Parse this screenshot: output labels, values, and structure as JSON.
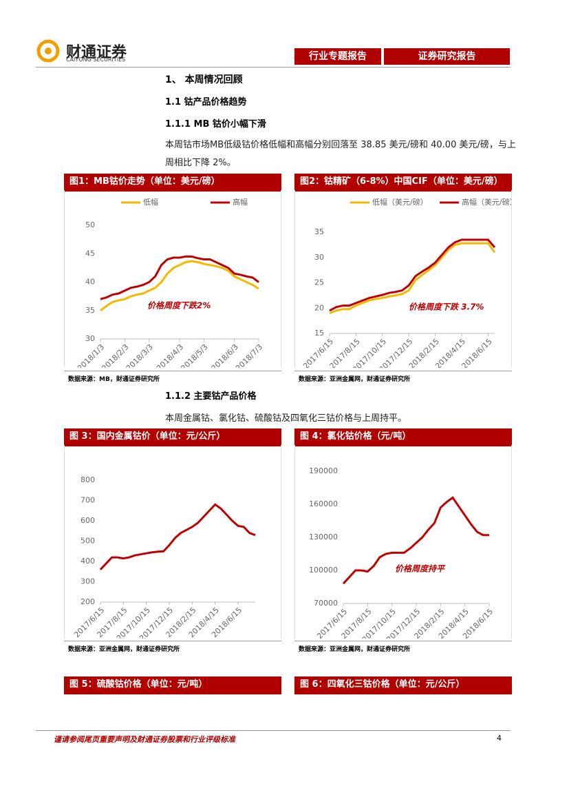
{
  "header": {
    "logo_cn": "财通证券",
    "logo_en": "CAITONG SECURITIES",
    "tab1": "行业专题报告",
    "tab2": "证券研究报告"
  },
  "sections": {
    "h1": "1、 本周情况回顾",
    "h11": "1.1  钴产品价格趋势",
    "h111": "1.1.1  MB 钴价小幅下滑",
    "p1": "本周钴市场MB低级钴价格低幅和高幅分别回落至 38.85 美元/磅和 40.00 美元/磅，与上周相比下降 2%。",
    "h112": "1.1.2  主要钴产品价格",
    "p2": "本周金属钴、氯化钴、硫酸钴及四氧化三钴价格与上周持平。",
    "fig5": "图 5：硫酸钴价格（单位：元/吨）",
    "fig6": "图 6：四氧化三钴价格（单位：元/公斤）"
  },
  "footer": {
    "disclaimer": "谨请参阅尾页重要声明及财通证券股票和行业评级标准",
    "page": "4"
  },
  "chart_data": [
    {
      "type": "line",
      "title": "图1：MB钴价走势（单位：美元/磅）",
      "source": "数据来源：MB，财通证券研究所",
      "annotation": "价格周度下跌2%",
      "categories": [
        "2018/1/3",
        null,
        null,
        null,
        "2018/2/3",
        null,
        null,
        null,
        "2018/3/3",
        null,
        null,
        null,
        null,
        "2018/4/3",
        null,
        null,
        null,
        "2018/5/3",
        null,
        null,
        null,
        null,
        "2018/6/3",
        null,
        null,
        null,
        "2018/7/3"
      ],
      "series": [
        {
          "name": "低幅",
          "color": "#f5b800",
          "values": [
            35,
            35.8,
            36.5,
            36.8,
            37,
            37.5,
            37.8,
            38,
            38.5,
            39,
            40,
            41.5,
            42.5,
            43,
            43.5,
            43.7,
            43.5,
            43.2,
            43,
            42.8,
            42.5,
            42,
            41,
            40.5,
            40,
            39.5,
            38.85
          ]
        },
        {
          "name": "高幅",
          "color": "#c00000",
          "values": [
            37,
            37.3,
            37.8,
            38,
            38.5,
            39,
            39.2,
            39.5,
            40,
            41,
            43,
            44,
            44.3,
            44.3,
            44.5,
            44.5,
            44.2,
            44,
            44,
            43.5,
            43,
            42.5,
            41.5,
            41.3,
            41,
            40.8,
            40
          ]
        }
      ],
      "ylim": [
        30,
        50
      ],
      "yticks": [
        30,
        35,
        40,
        45,
        50
      ],
      "legend": "top"
    },
    {
      "type": "line",
      "title": "图2：钴精矿（6-8%）中国CIF（单位：美元/磅）",
      "source": "数据来源：亚洲金属网，财通证券研究所",
      "annotation": "价格周度下跌 3.7%",
      "categories": [
        "2017/6/15",
        null,
        null,
        null,
        "2017/8/15",
        null,
        null,
        null,
        "2017/10/15",
        null,
        null,
        null,
        "2017/12/15",
        null,
        null,
        null,
        "2018/2/15",
        null,
        null,
        null,
        "2018/4/15",
        null,
        null,
        null,
        "2018/6/15",
        null
      ],
      "series": [
        {
          "name": "低幅（美元/磅）",
          "color": "#f5b800",
          "values": [
            19,
            19.5,
            19.8,
            19.8,
            20.5,
            21,
            21.5,
            21.8,
            22,
            22.3,
            22.5,
            22.8,
            23.5,
            25.5,
            26.5,
            27.5,
            28.5,
            30,
            31.5,
            32.5,
            32.8,
            32.8,
            32.8,
            32.8,
            32.8,
            31
          ]
        },
        {
          "name": "高幅（美元/磅）",
          "color": "#c00000",
          "values": [
            19.5,
            20.2,
            20.5,
            20.5,
            21,
            21.5,
            22,
            22.3,
            22.6,
            23,
            23.2,
            23.5,
            24.5,
            26.3,
            27.2,
            28,
            29,
            30.5,
            32,
            33,
            33.5,
            33.5,
            33.5,
            33.5,
            33.5,
            32
          ]
        }
      ],
      "ylim": [
        15,
        35
      ],
      "yticks": [
        15,
        20,
        25,
        30,
        35
      ],
      "legend": "top"
    },
    {
      "type": "line",
      "title": "图 3：国内金属钴价（单位：元/公斤）",
      "source": "数据来源：亚洲金属网，财通证券研究所",
      "categories": [
        "2017/6/15",
        null,
        null,
        null,
        "2017/8/15",
        null,
        null,
        null,
        "2017/10/15",
        null,
        null,
        null,
        "2017/12/15",
        null,
        null,
        null,
        "2018/2/15",
        null,
        null,
        null,
        "2018/4/15",
        null,
        null,
        null,
        "2018/6/15",
        null,
        null,
        null
      ],
      "series": [
        {
          "color": "#c00000",
          "values": [
            360,
            390,
            420,
            420,
            415,
            420,
            430,
            435,
            440,
            445,
            448,
            450,
            480,
            515,
            540,
            555,
            570,
            590,
            620,
            650,
            680,
            660,
            630,
            600,
            575,
            570,
            540,
            530
          ]
        }
      ],
      "ylim": [
        200,
        800
      ],
      "yticks": [
        200,
        300,
        400,
        500,
        600,
        700,
        800
      ]
    },
    {
      "type": "line",
      "title": "图 4：氯化钴价格（元/吨）",
      "source": "数据来源：亚洲金属网，财通证券研究所",
      "annotation": "价格周度持平",
      "categories": [
        "2017/6/15",
        null,
        null,
        null,
        "2017/8/15",
        null,
        null,
        null,
        "2017/10/15",
        null,
        null,
        null,
        "2017/12/15",
        null,
        null,
        null,
        "2018/2/15",
        null,
        null,
        null,
        "2018/4/15",
        null,
        null,
        null,
        "2018/6/15"
      ],
      "series": [
        {
          "color": "#c00000",
          "values": [
            88000,
            94000,
            100000,
            100000,
            99000,
            104000,
            112000,
            115000,
            116000,
            116000,
            116000,
            120000,
            125000,
            130000,
            137000,
            143000,
            157000,
            162000,
            166000,
            158000,
            150000,
            142000,
            135000,
            132000,
            132000
          ]
        }
      ],
      "ylim": [
        70000,
        190000
      ],
      "yticks": [
        70000,
        100000,
        130000,
        160000,
        190000
      ]
    }
  ]
}
